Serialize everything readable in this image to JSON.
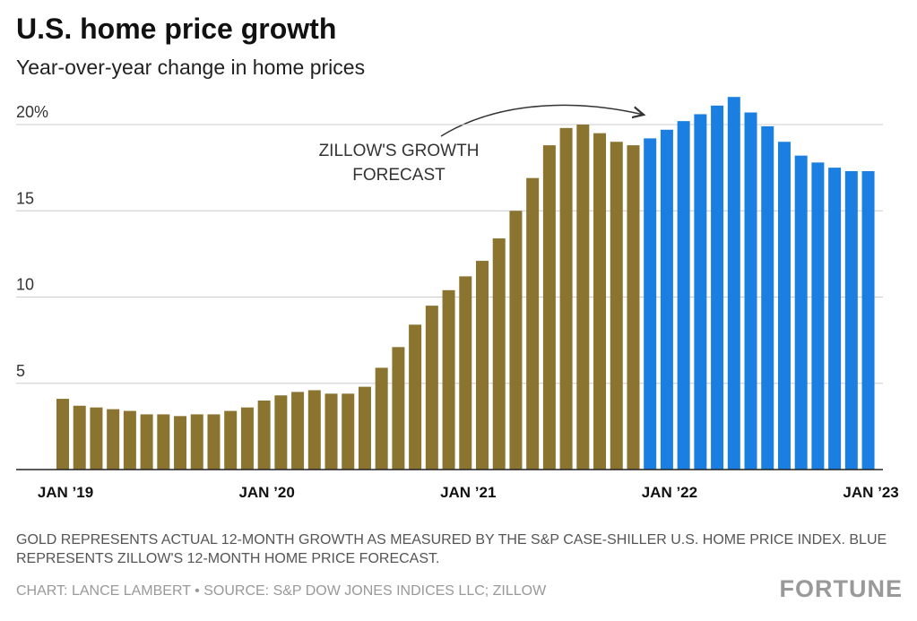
{
  "chart_data": {
    "type": "bar",
    "title": "U.S. home price growth",
    "subtitle": "Year-over-year change in home prices",
    "annotation": [
      "ZILLOW'S GROWTH",
      "FORECAST"
    ],
    "note": "GOLD REPRESENTS ACTUAL 12-MONTH GROWTH AS MEASURED BY THE S&P CASE-SHILLER U.S. HOME PRICE INDEX. BLUE REPRESENTS ZILLOW'S 12-MONTH HOME PRICE FORECAST.",
    "source": "CHART: LANCE LAMBERT • SOURCE: S&P DOW JONES INDICES LLC; ZILLOW",
    "brand": "FORTUNE",
    "categories": [
      "JAN ’19",
      null,
      null,
      null,
      null,
      null,
      null,
      null,
      null,
      null,
      null,
      null,
      "JAN ’20",
      null,
      null,
      null,
      null,
      null,
      null,
      null,
      null,
      null,
      null,
      null,
      "JAN ’21",
      null,
      null,
      null,
      null,
      null,
      null,
      null,
      null,
      null,
      null,
      null,
      "JAN ’22",
      null,
      null,
      null,
      null,
      null,
      null,
      null,
      null,
      null,
      null,
      null,
      "JAN ’23"
    ],
    "series": [
      {
        "color": "#8a7430",
        "values": [
          4.1,
          3.7,
          3.6,
          3.5,
          3.4,
          3.2,
          3.2,
          3.1,
          3.2,
          3.2,
          3.4,
          3.6,
          4.0,
          4.3,
          4.5,
          4.6,
          4.4,
          4.4,
          4.8,
          5.9,
          7.1,
          8.4,
          9.5,
          10.4,
          11.2,
          12.1,
          13.4,
          15.0,
          16.9,
          18.8,
          19.8,
          20.0,
          19.5,
          19.0,
          18.8,
          null,
          null,
          null,
          null,
          null,
          null,
          null,
          null,
          null,
          null,
          null,
          null,
          null,
          null
        ]
      },
      {
        "color": "#1a7fe0",
        "values": [
          null,
          null,
          null,
          null,
          null,
          null,
          null,
          null,
          null,
          null,
          null,
          null,
          null,
          null,
          null,
          null,
          null,
          null,
          null,
          null,
          null,
          null,
          null,
          null,
          null,
          null,
          null,
          null,
          null,
          null,
          null,
          null,
          null,
          null,
          null,
          19.2,
          19.7,
          20.2,
          20.6,
          21.1,
          21.6,
          20.7,
          19.9,
          19.0,
          18.2,
          17.8,
          17.5,
          17.3,
          17.3
        ]
      }
    ],
    "ylim": [
      0,
      22
    ],
    "yticks": [
      5,
      10,
      15,
      {
        "value": 20,
        "label": "20%"
      }
    ],
    "grid": true
  }
}
